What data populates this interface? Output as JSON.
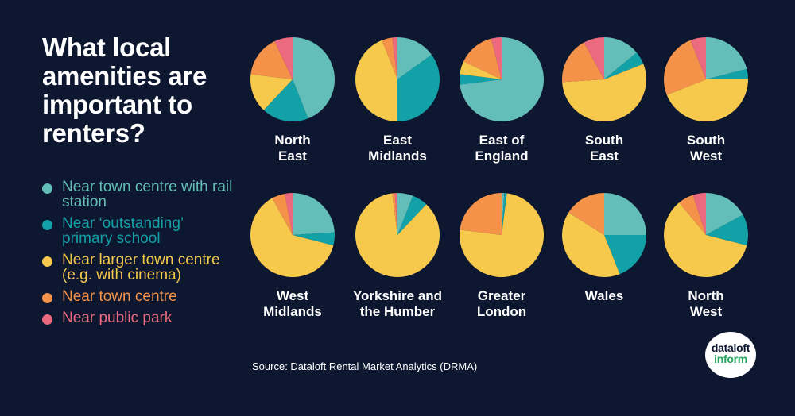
{
  "title": "What local amenities are important to renters?",
  "source": "Source: Dataloft Rental Market Analytics (DRMA)",
  "logo": {
    "line1": "dataloft",
    "line2": "inform"
  },
  "colors": {
    "background": "#0e1730",
    "near_town_centre_rail": "#63bdb9",
    "near_outstanding_school": "#12a1a7",
    "near_larger_town_centre": "#f6c94c",
    "near_town_centre": "#f5924a",
    "near_public_park": "#ec6a7f",
    "logo_green": "#21a35b"
  },
  "legend": [
    {
      "label": "Near town centre with rail station",
      "color": "#63bdb9"
    },
    {
      "label": "Near ‘outstanding’ primary school",
      "color": "#12a1a7"
    },
    {
      "label": "Near larger town centre (e.g. with cinema)",
      "color": "#f6c94c"
    },
    {
      "label": "Near town centre",
      "color": "#f5924a"
    },
    {
      "label": "Near public park",
      "color": "#ec6a7f"
    }
  ],
  "chart_data": {
    "type": "pie",
    "categories": [
      "Near town centre with rail station",
      "Near ‘outstanding’ primary school",
      "Near larger town centre (e.g. with cinema)",
      "Near town centre",
      "Near public park"
    ],
    "pies": [
      {
        "label": "North East",
        "values": [
          44,
          18,
          15,
          16,
          7
        ]
      },
      {
        "label": "East Midlands",
        "values": [
          15,
          35,
          44,
          4,
          2
        ]
      },
      {
        "label": "East of England",
        "values": [
          73,
          4,
          5,
          14,
          4
        ]
      },
      {
        "label": "South East",
        "values": [
          14,
          5,
          55,
          18,
          8
        ]
      },
      {
        "label": "South West",
        "values": [
          21,
          4,
          44,
          25,
          6
        ]
      },
      {
        "label": "West Midlands",
        "values": [
          24,
          5,
          63,
          5,
          3
        ]
      },
      {
        "label": "Yorkshire and the Humber",
        "values": [
          6,
          6,
          86,
          1,
          1
        ]
      },
      {
        "label": "Greater London",
        "values": [
          1,
          1,
          75,
          23,
          0
        ]
      },
      {
        "label": "Wales",
        "values": [
          25,
          19,
          40,
          16,
          0
        ]
      },
      {
        "label": "North West",
        "values": [
          17,
          12,
          60,
          6,
          5
        ]
      }
    ]
  }
}
